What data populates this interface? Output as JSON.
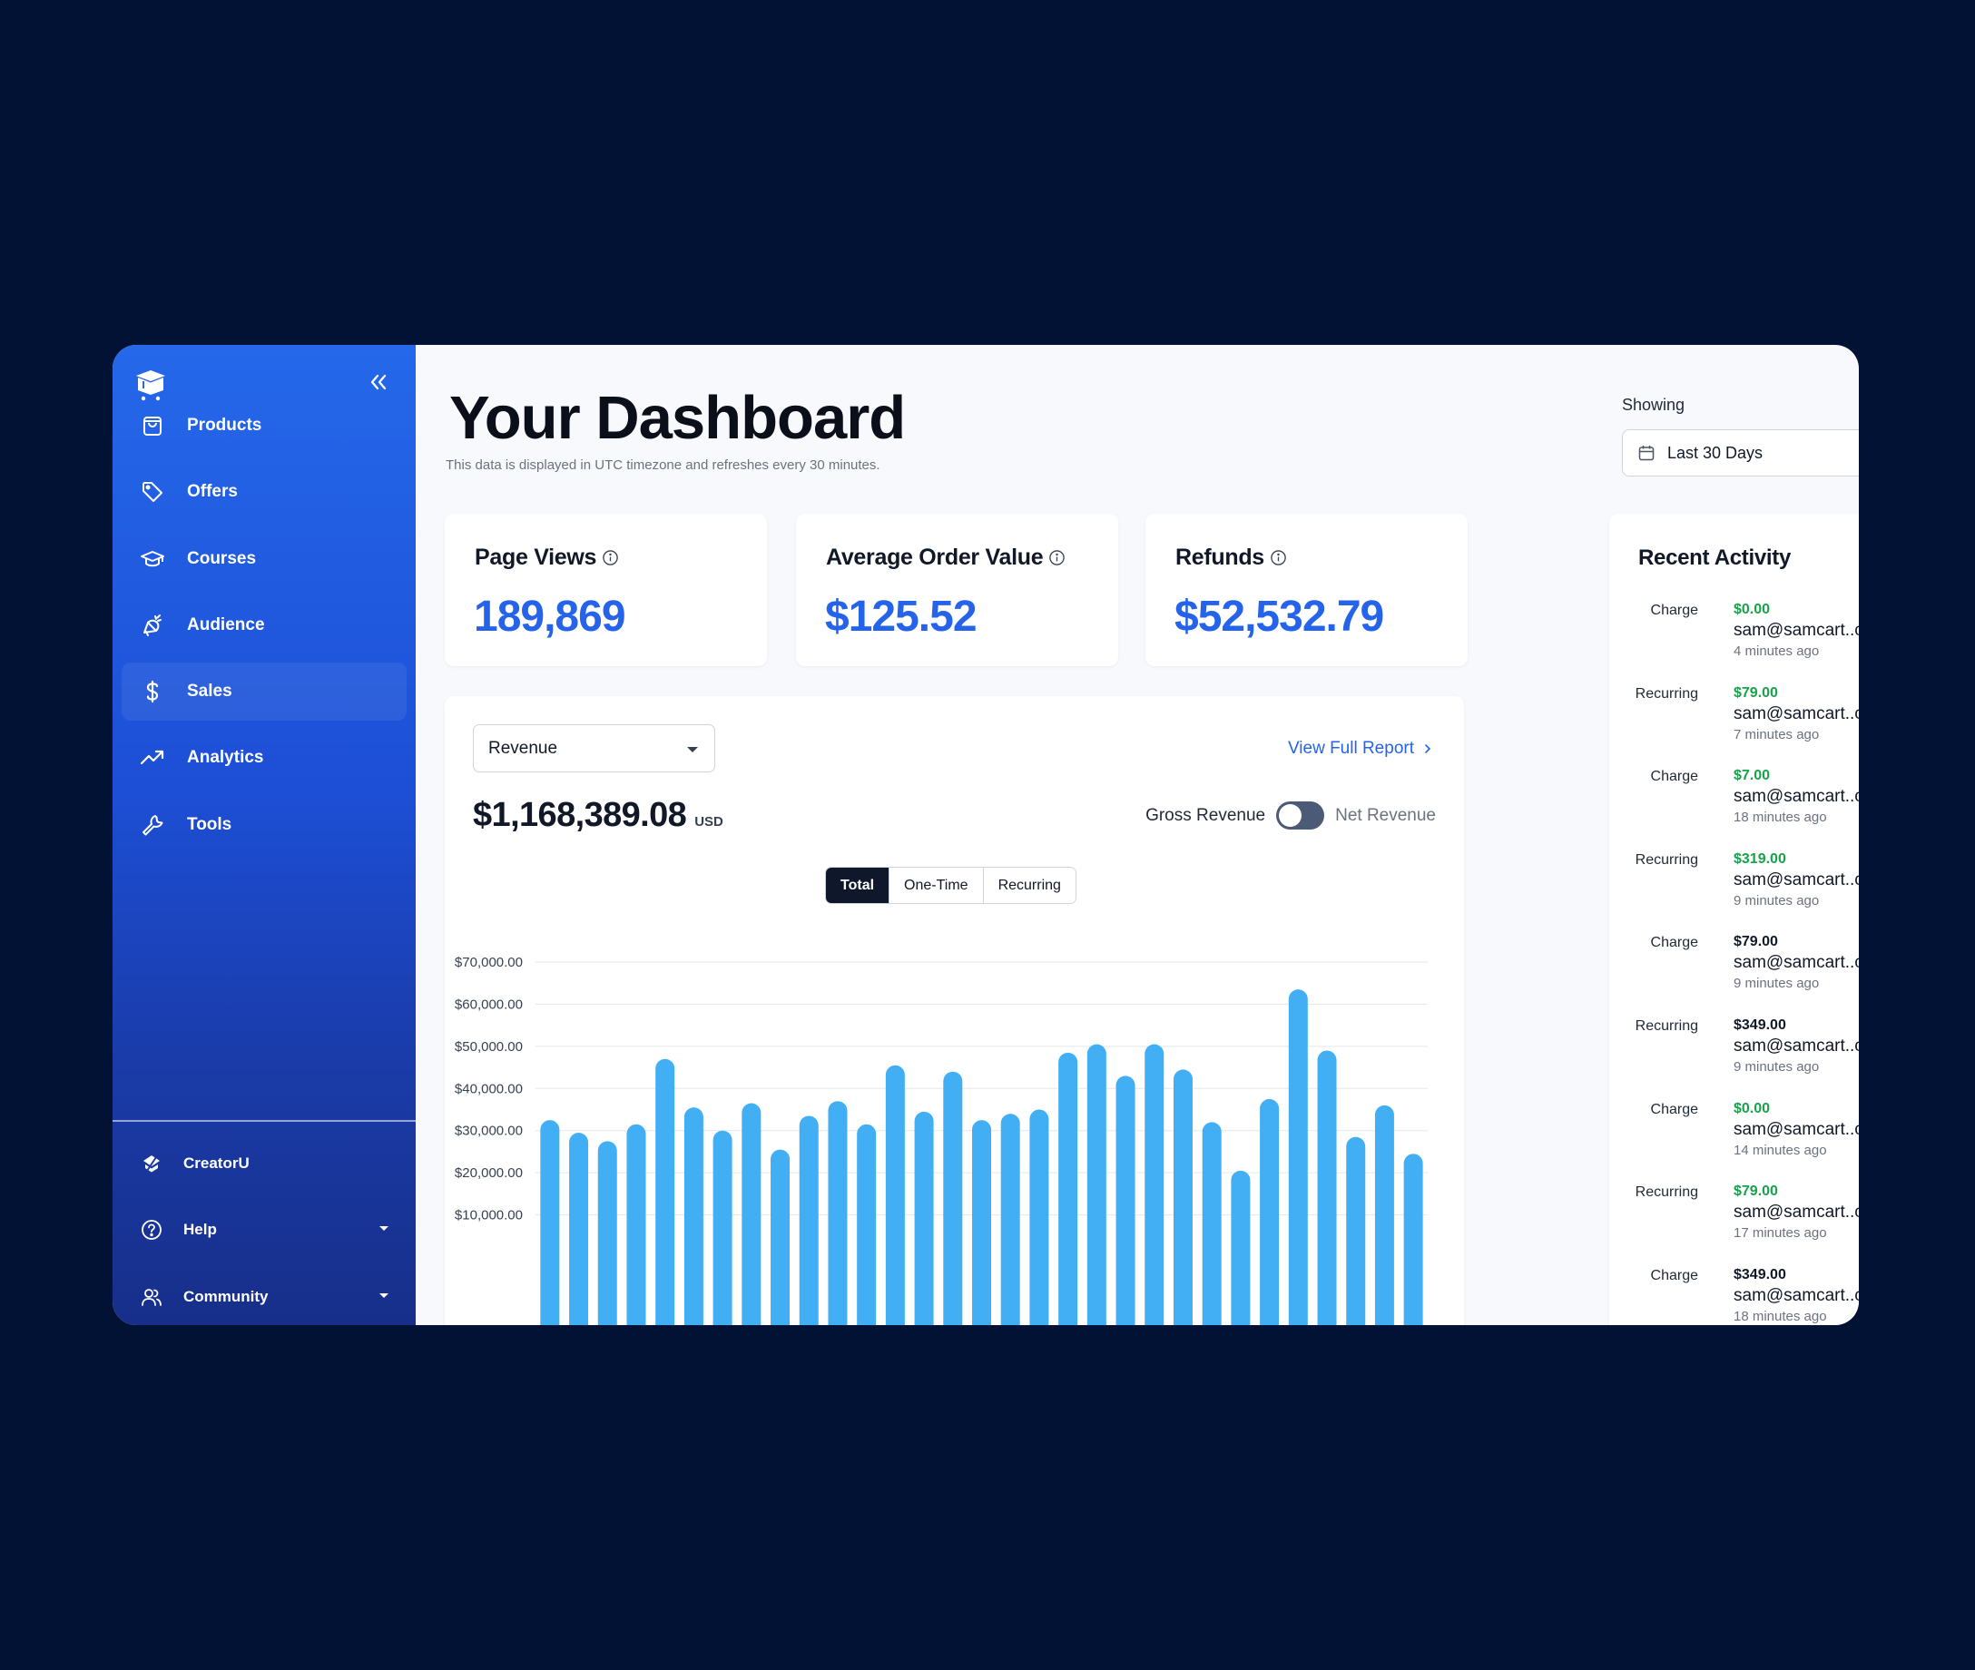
{
  "sidebar": {
    "items": [
      {
        "label": "Products",
        "icon": "bag-icon"
      },
      {
        "label": "Offers",
        "icon": "tag-icon"
      },
      {
        "label": "Courses",
        "icon": "graduation-cap-icon"
      },
      {
        "label": "Audience",
        "icon": "megaphone-icon"
      },
      {
        "label": "Sales",
        "icon": "dollar-icon",
        "active": true
      },
      {
        "label": "Analytics",
        "icon": "trend-up-icon"
      },
      {
        "label": "Tools",
        "icon": "wrench-icon"
      }
    ],
    "bottom": [
      {
        "label": "CreatorU",
        "icon": "creatoru-icon"
      },
      {
        "label": "Help",
        "icon": "help-circle-icon"
      },
      {
        "label": "Community",
        "icon": "users-icon"
      }
    ]
  },
  "header": {
    "title": "Your Dashboard",
    "subtitle": "This data is displayed in UTC timezone and refreshes every 30 minutes.",
    "showing_label": "Showing",
    "date_range": "Last 30 Days"
  },
  "stats": [
    {
      "title": "Page Views",
      "value": "189,869"
    },
    {
      "title": "Average Order Value",
      "value": "$125.52"
    },
    {
      "title": "Refunds",
      "value": "$52,532.79"
    }
  ],
  "revenue": {
    "metric": "Revenue",
    "view_report": "View Full Report",
    "total": "$1,168,389.08",
    "currency": "USD",
    "gross_label": "Gross Revenue",
    "net_label": "Net Revenue",
    "segments": [
      "Total",
      "One-Time",
      "Recurring"
    ],
    "active_segment": "Total"
  },
  "chart_data": {
    "type": "bar",
    "y_ticks": [
      "$70,000.00",
      "$60,000.00",
      "$50,000.00",
      "$40,000.00",
      "$30,000.00",
      "$20,000.00",
      "$10,000.00"
    ],
    "ylim": [
      0,
      70000
    ],
    "values": [
      32500,
      29500,
      27500,
      31500,
      47000,
      35500,
      30000,
      36500,
      25500,
      33500,
      37000,
      31500,
      45500,
      34500,
      44000,
      32500,
      34000,
      35000,
      48500,
      50500,
      43000,
      50500,
      44500,
      32000,
      20500,
      37500,
      63500,
      49000,
      28500,
      36000,
      24500
    ],
    "color": "#42aff5",
    "grid": true
  },
  "activity": {
    "title": "Recent Activity",
    "items": [
      {
        "type": "Charge",
        "amount": "$0.00",
        "email": "sam@samcart..com...",
        "time": "4 minutes ago",
        "green": true
      },
      {
        "type": "Recurring",
        "amount": "$79.00",
        "email": "sam@samcart..com...",
        "time": "7 minutes ago",
        "green": true
      },
      {
        "type": "Charge",
        "amount": "$7.00",
        "email": "sam@samcart..com...",
        "time": "18 minutes ago",
        "green": true
      },
      {
        "type": "Recurring",
        "amount": "$319.00",
        "email": "sam@samcart..com...",
        "time": "9 minutes ago",
        "green": true
      },
      {
        "type": "Charge",
        "amount": "$79.00",
        "email": "sam@samcart..com...",
        "time": "9 minutes ago",
        "green": false
      },
      {
        "type": "Recurring",
        "amount": "$349.00",
        "email": "sam@samcart..com...",
        "time": "9 minutes ago",
        "green": false
      },
      {
        "type": "Charge",
        "amount": "$0.00",
        "email": "sam@samcart..com...",
        "time": "14 minutes ago",
        "green": true
      },
      {
        "type": "Recurring",
        "amount": "$79.00",
        "email": "sam@samcart..com...",
        "time": "17 minutes ago",
        "green": true
      },
      {
        "type": "Charge",
        "amount": "$349.00",
        "email": "sam@samcart..com...",
        "time": "18 minutes ago",
        "green": false
      }
    ]
  }
}
